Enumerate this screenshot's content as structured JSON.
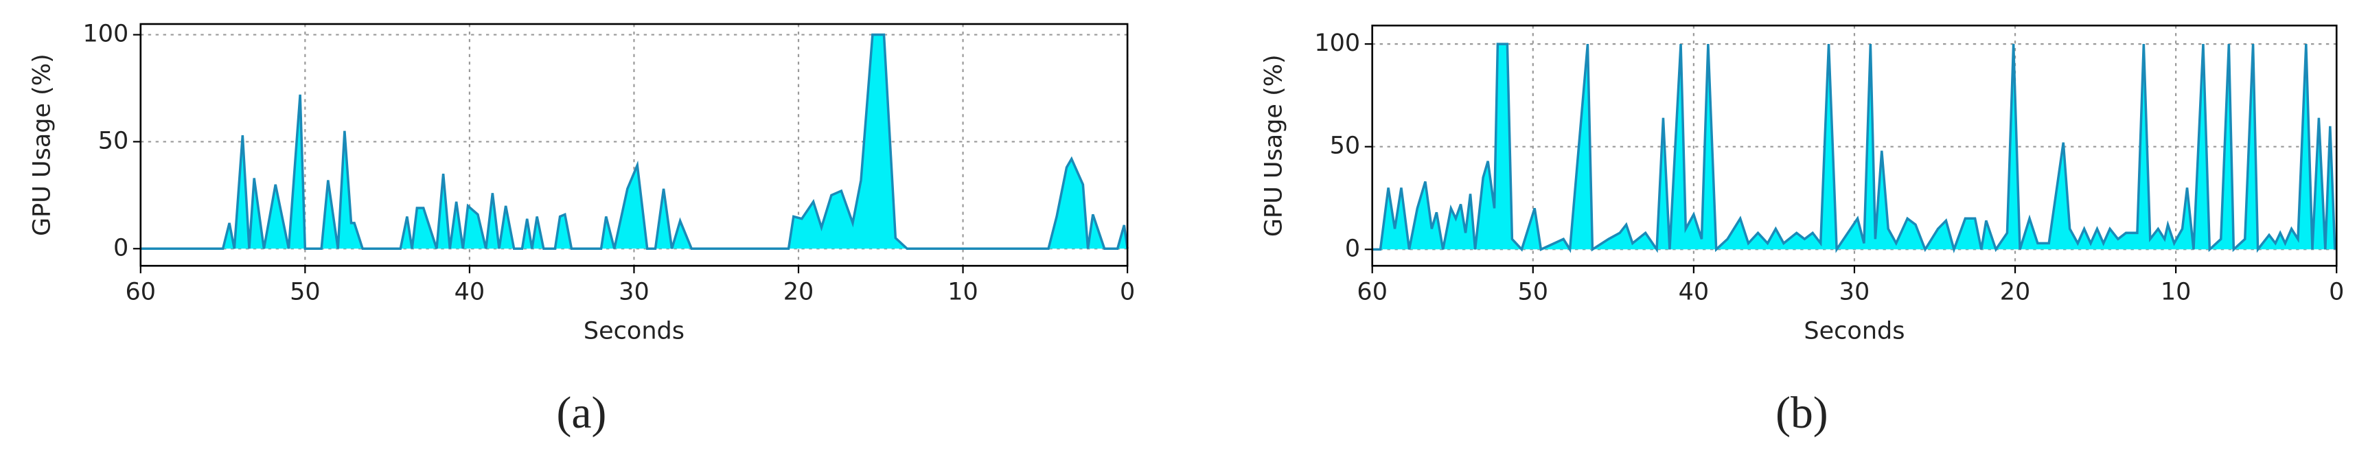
{
  "chart_data": [
    {
      "type": "area",
      "panel_label": "(a)",
      "xlabel": "Seconds",
      "ylabel": "GPU Usage (%)",
      "color": "#00f0f8",
      "line_color": "#1a8ab8",
      "grid": true,
      "xlim": [
        60,
        0
      ],
      "ylim": [
        -8,
        105
      ],
      "xticks": [
        60,
        50,
        40,
        30,
        20,
        10,
        0
      ],
      "yticks": [
        0,
        50,
        100
      ],
      "x": [
        60,
        55,
        54.6,
        54.3,
        53.8,
        53.4,
        53.1,
        52.5,
        51.8,
        51,
        50.3,
        50,
        49,
        48.6,
        48,
        47.6,
        47.2,
        47,
        46.5,
        44.2,
        43.8,
        43.5,
        43.2,
        42.8,
        42,
        41.6,
        41.2,
        40.8,
        40.4,
        40.1,
        39.5,
        39,
        38.6,
        38.2,
        37.8,
        37.3,
        36.8,
        36.5,
        36.2,
        35.9,
        35.5,
        34.8,
        34.5,
        34.2,
        33.8,
        32,
        31.7,
        31.2,
        30.4,
        29.8,
        29.2,
        28.7,
        28.2,
        27.7,
        27.2,
        26.5,
        20.6,
        20.3,
        19.8,
        19.1,
        18.6,
        18,
        17.4,
        16.7,
        16.2,
        15.5,
        14.8,
        14.1,
        13.4,
        4.8,
        4.3,
        3.7,
        3.4,
        2.7,
        2.4,
        2.1,
        1.4,
        0.6,
        0.2,
        0
      ],
      "values": [
        0,
        0,
        12,
        0,
        53,
        0,
        33,
        0,
        30,
        0,
        72,
        0,
        0,
        32,
        0,
        55,
        12,
        12,
        0,
        0,
        15,
        0,
        19,
        19,
        0,
        35,
        0,
        22,
        0,
        20,
        16,
        0,
        26,
        0,
        20,
        0,
        0,
        14,
        0,
        15,
        0,
        0,
        15,
        16,
        0,
        0,
        15,
        0,
        28,
        39,
        0,
        0,
        28,
        0,
        13,
        0,
        0,
        15,
        14,
        22,
        10,
        25,
        27,
        12,
        32,
        100,
        100,
        5,
        0,
        0,
        15,
        38,
        42,
        30,
        0,
        16,
        0,
        0,
        11,
        0
      ]
    },
    {
      "type": "area",
      "panel_label": "(b)",
      "xlabel": "Seconds",
      "ylabel": "GPU Usage (%)",
      "color": "#00f0f8",
      "line_color": "#1a8ab8",
      "grid": true,
      "xlim": [
        60,
        0
      ],
      "ylim": [
        -8,
        109
      ],
      "xticks": [
        60,
        50,
        40,
        30,
        20,
        10,
        0
      ],
      "yticks": [
        0,
        50,
        100
      ],
      "x": [
        60,
        59.5,
        59,
        58.6,
        58.2,
        57.7,
        57.2,
        56.7,
        56.3,
        56,
        55.6,
        55.1,
        54.8,
        54.5,
        54.2,
        53.9,
        53.6,
        53.1,
        52.8,
        52.4,
        52.2,
        51.6,
        51.3,
        50.7,
        49.9,
        49.5,
        48.1,
        47.7,
        46.6,
        46.3,
        45.3,
        44.6,
        44.2,
        43.8,
        43,
        42.3,
        41.9,
        41.5,
        40.8,
        40.5,
        40,
        39.5,
        39.1,
        38.6,
        37.9,
        37.1,
        36.6,
        36,
        35.4,
        34.9,
        34.4,
        33.6,
        33.1,
        32.6,
        32.1,
        31.6,
        31.1,
        29.8,
        29.4,
        29,
        28.7,
        28.3,
        27.9,
        27.4,
        26.7,
        26.2,
        25.6,
        24.8,
        24.3,
        23.8,
        23.1,
        22.5,
        22.1,
        21.8,
        21.2,
        20.5,
        20.1,
        19.7,
        19.1,
        18.6,
        17.9,
        17,
        16.6,
        16.1,
        15.7,
        15.3,
        14.9,
        14.5,
        14.1,
        13.6,
        13.1,
        12.4,
        12,
        11.6,
        11.1,
        10.7,
        10.5,
        10.1,
        9.6,
        9.3,
        8.9,
        8.3,
        7.9,
        7.2,
        6.7,
        6.4,
        5.7,
        5.2,
        4.9,
        4.2,
        3.8,
        3.5,
        3.2,
        2.8,
        2.4,
        1.9,
        1.5,
        1.1,
        0.7,
        0.4,
        0.1
      ],
      "values": [
        0,
        0,
        30,
        10,
        30,
        0,
        20,
        33,
        10,
        18,
        0,
        20,
        15,
        22,
        8,
        27,
        0,
        35,
        43,
        20,
        100,
        100,
        5,
        0,
        20,
        0,
        5,
        0,
        100,
        0,
        5,
        8,
        12,
        3,
        8,
        0,
        64,
        0,
        100,
        10,
        17,
        5,
        100,
        0,
        5,
        15,
        3,
        8,
        3,
        10,
        3,
        8,
        5,
        8,
        3,
        100,
        0,
        15,
        3,
        100,
        5,
        48,
        10,
        3,
        15,
        12,
        0,
        10,
        14,
        0,
        15,
        15,
        0,
        14,
        0,
        8,
        100,
        0,
        15,
        3,
        3,
        52,
        10,
        3,
        10,
        3,
        10,
        3,
        10,
        5,
        8,
        8,
        100,
        5,
        10,
        5,
        12,
        3,
        10,
        30,
        0,
        100,
        0,
        5,
        100,
        0,
        5,
        100,
        0,
        7,
        3,
        8,
        3,
        10,
        5,
        100,
        0,
        64,
        0,
        60,
        0
      ]
    }
  ]
}
